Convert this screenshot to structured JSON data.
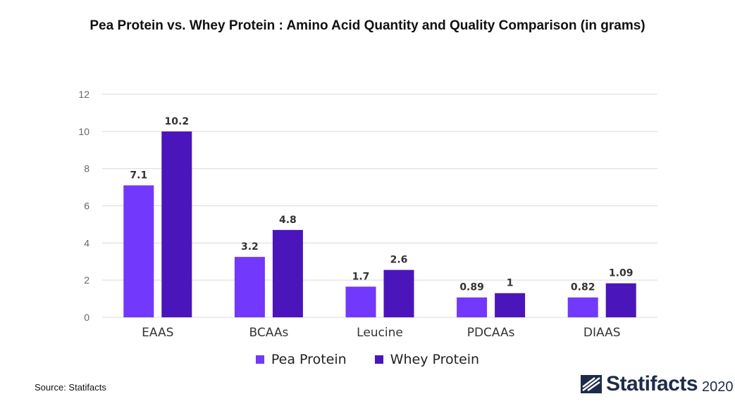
{
  "title": "Pea Protein vs. Whey Protein : Amino Acid Quantity and Quality Comparison (in grams)",
  "source": "Source: Statifacts",
  "brand": {
    "name": "Statifacts",
    "year": "2020",
    "icon": "statifacts-logo-icon"
  },
  "colors": {
    "pea": "#7238fb",
    "whey": "#4a15bb",
    "grid": "#d9d9d9",
    "axis_text": "#666666",
    "label_text": "#333333"
  },
  "chart_data": {
    "type": "bar",
    "categories": [
      "EAAS",
      "BCAAs",
      "Leucine",
      "PDCAAs",
      "DIAAS"
    ],
    "series": [
      {
        "name": "Pea Protein",
        "values": [
          7.1,
          3.2,
          1.7,
          0.89,
          0.82
        ],
        "bar_values": [
          7.1,
          3.25,
          1.65,
          1.07,
          1.07
        ],
        "labels": [
          "7.1",
          "3.2",
          "1.7",
          "0.89",
          "0.82"
        ]
      },
      {
        "name": "Whey Protein",
        "values": [
          10.2,
          4.8,
          2.6,
          1,
          1.09
        ],
        "bar_values": [
          10.0,
          4.7,
          2.55,
          1.3,
          1.83
        ],
        "labels": [
          "10.2",
          "4.8",
          "2.6",
          "1",
          "1.09"
        ]
      }
    ],
    "yticks": [
      "0",
      "2",
      "4",
      "6",
      "8",
      "10",
      "12"
    ],
    "ylim": [
      0,
      12
    ],
    "grid": true,
    "legend": "bottom-center"
  }
}
